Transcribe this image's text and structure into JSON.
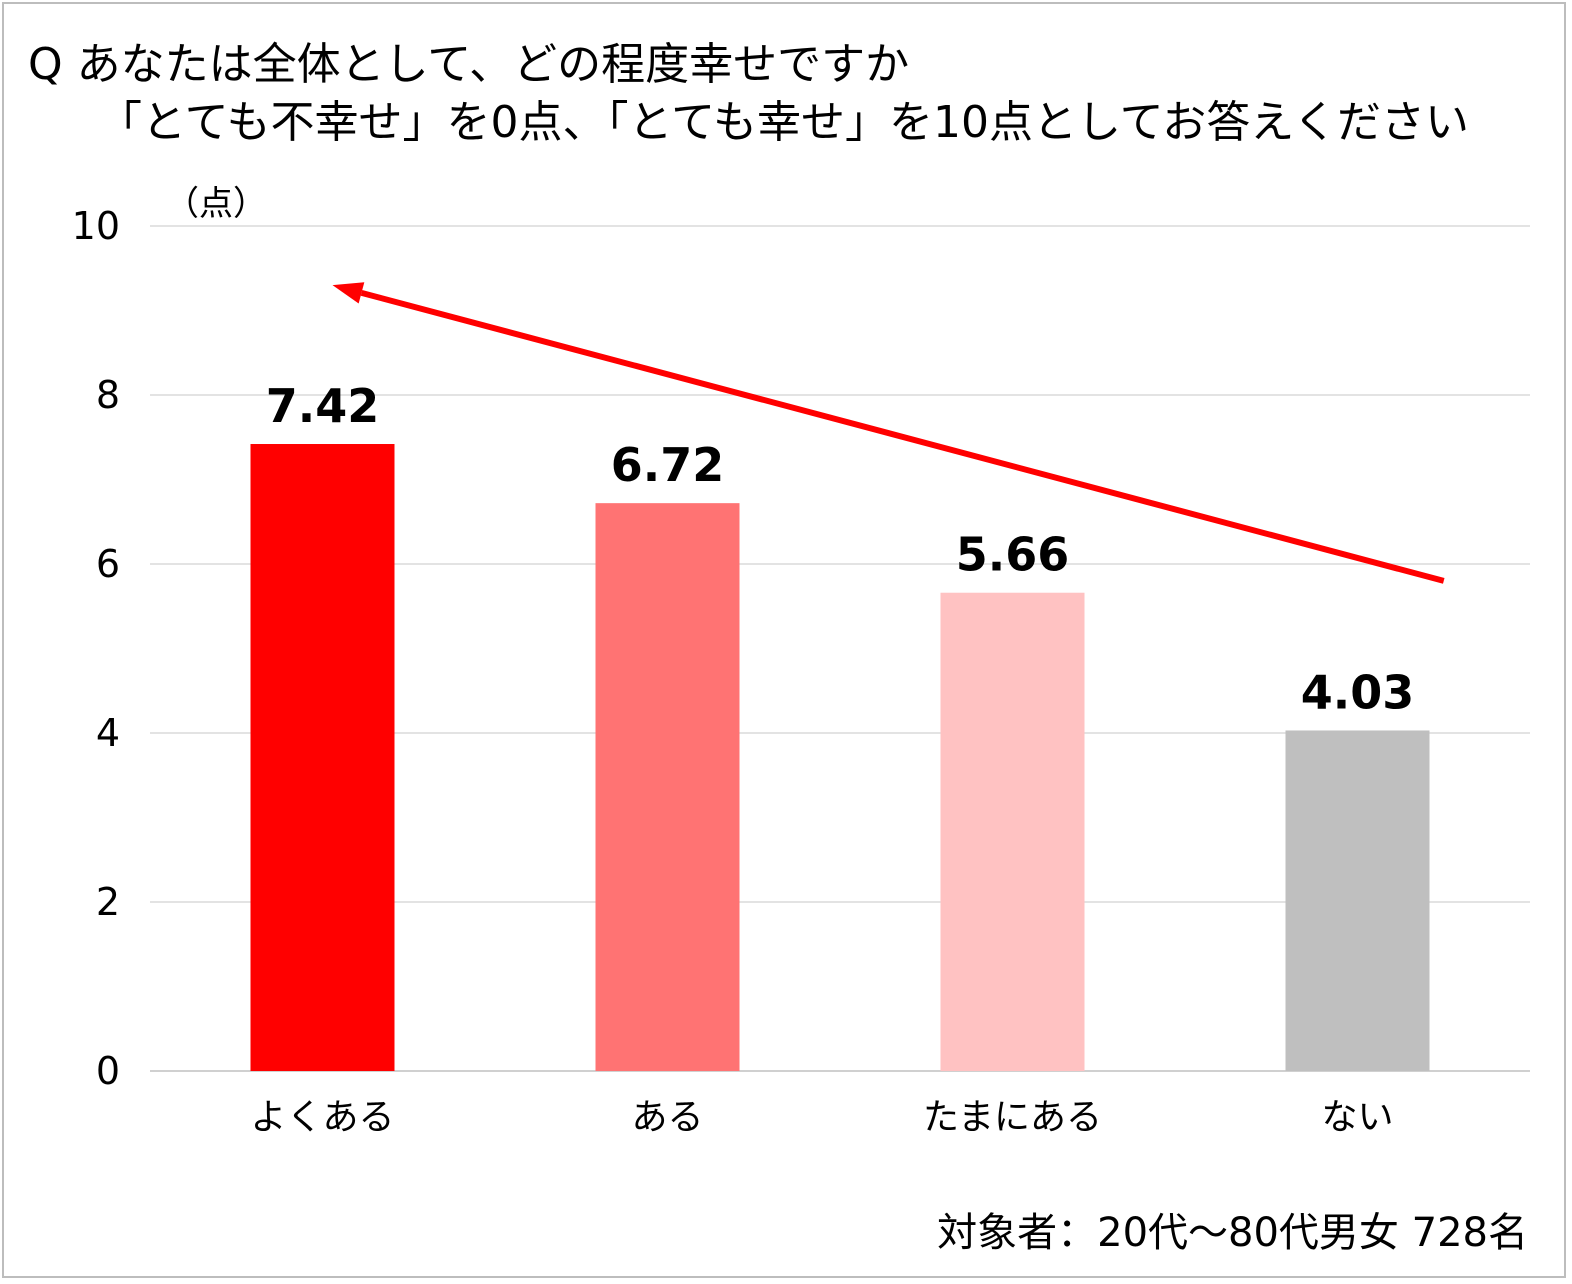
{
  "title": {
    "line1": "Q  あなたは全体として、どの程度幸せですか",
    "line2": "「とても不幸せ」を0点、「とても幸せ」を10点としてお答えください"
  },
  "footnote": "対象者：20代～80代男女 728名",
  "chart_data": {
    "type": "bar",
    "categories": [
      "よくある",
      "ある",
      "たまにある",
      "ない"
    ],
    "values": [
      7.42,
      6.72,
      5.66,
      4.03
    ],
    "value_labels": [
      "7.42",
      "6.72",
      "5.66",
      "4.03"
    ],
    "bar_colors": [
      "#ff0000",
      "#ff7373",
      "#ffc2c2",
      "#bfbfbf"
    ],
    "unit_label": "（点）",
    "ylim": [
      0,
      10
    ],
    "yticks": [
      0,
      2,
      4,
      6,
      8,
      10
    ],
    "grid": true,
    "legend": "none",
    "trend_arrow": {
      "from": 5.8,
      "to": 9.3,
      "color": "#ff0000",
      "direction": "toward-first-category"
    }
  }
}
